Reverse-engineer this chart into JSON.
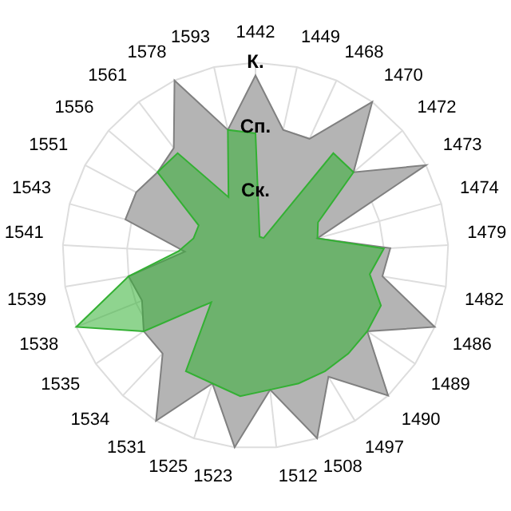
{
  "chart_data": {
    "type": "radar",
    "categories": [
      "1442",
      "1449",
      "1468",
      "1470",
      "1472",
      "1473",
      "1474",
      "1479",
      "1482",
      "1486",
      "1489",
      "1490",
      "1497",
      "1508",
      "1512",
      "1523",
      "1525",
      "1531",
      "1534",
      "1535",
      "1538",
      "1539",
      "1541",
      "1543",
      "1551",
      "1556",
      "1561",
      "1578",
      "1593"
    ],
    "ylim": [
      0,
      3
    ],
    "yticks": [
      {
        "value": 1,
        "label": "Ск."
      },
      {
        "value": 2,
        "label": "Сп."
      },
      {
        "value": 3,
        "label": "К."
      }
    ],
    "grid": true,
    "legend": false,
    "marker": "none",
    "series": [
      {
        "color": "#b4b4b4",
        "values": [
          2.8,
          2.0,
          2.0,
          3.0,
          2.0,
          3.0,
          1.0,
          2.1,
          2.0,
          3.0,
          2.1,
          3.0,
          2.2,
          3.0,
          2.1,
          3.0,
          2.1,
          3.0,
          2.1,
          2.1,
          1.9,
          2.0,
          1.1,
          2.1,
          2.1,
          2.0,
          2.1,
          3.0,
          2.0
        ]
      },
      {
        "color": "#33b033",
        "values": [
          1.9,
          0.3,
          0.3,
          2.0,
          2.0,
          1.1,
          1.0,
          2.0,
          1.8,
          2.1,
          2.1,
          2.1,
          2.1,
          2.1,
          2.1,
          2.2,
          2.1,
          2.1,
          1.0,
          2.1,
          3.0,
          2.0,
          1.2,
          1.0,
          1.0,
          2.0,
          2.0,
          1.0,
          2.0
        ]
      }
    ]
  }
}
